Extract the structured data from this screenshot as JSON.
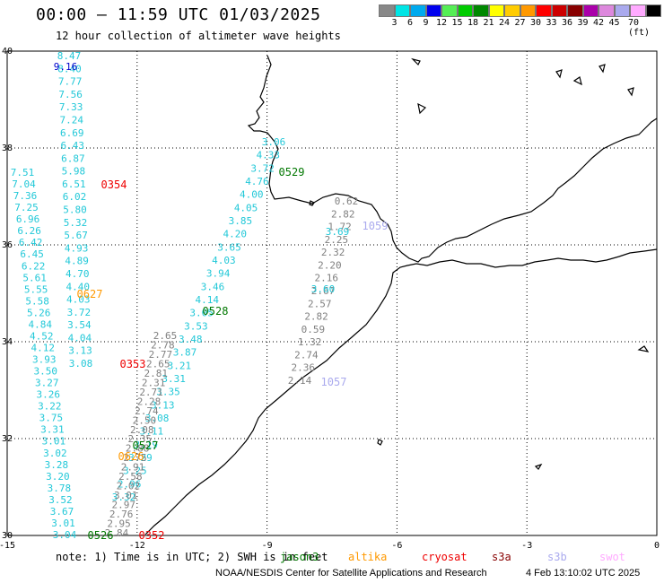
{
  "title": "00:00 – 11:59 UTC 01/03/2025",
  "subtitle": "12 hour collection of altimeter wave heights",
  "colorbar": {
    "colors": [
      "#888888",
      "#00e5e5",
      "#00aaee",
      "#0000ee",
      "#55ee55",
      "#00cc00",
      "#008800",
      "#ffff00",
      "#ffcc00",
      "#ff9900",
      "#ff0000",
      "#cc0000",
      "#880000",
      "#aa00aa",
      "#dd88dd",
      "#aaaaee",
      "#ffaaff",
      "#000000"
    ],
    "labels": [
      "3",
      "6",
      "9",
      "12",
      "15",
      "18",
      "21",
      "24",
      "27",
      "30",
      "33",
      "36",
      "39",
      "42",
      "45",
      "70 (ft)"
    ]
  },
  "axes": {
    "lat_labels": [
      "40",
      "38",
      "36",
      "34",
      "32",
      "30"
    ],
    "lon_labels": [
      "-15",
      "-12",
      "-9",
      "-6",
      "-3",
      "0"
    ]
  },
  "passes": [
    {
      "color": "#22c8d8",
      "values": [
        "8.47",
        "8.40",
        "7.77",
        "7.56",
        "7.33",
        "7.24",
        "6.69",
        "6.43",
        "6.87",
        "5.98",
        "6.51",
        "6.02",
        "5.80",
        "5.32",
        "5.67",
        "4.93",
        "4.89",
        "4.70",
        "4.40",
        "4.03",
        "3.72",
        "3.54",
        "4.04",
        "3.13",
        "3.08"
      ]
    },
    {
      "color": "#0000cc",
      "values": [
        "9.16"
      ]
    },
    {
      "color": "#22c8d8",
      "values": [
        "7.51",
        "7.04",
        "7.36",
        "7.25",
        "6.96",
        "6.26",
        "6.42",
        "6.45",
        "6.22",
        "5.61",
        "5.55",
        "5.58",
        "5.26",
        "4.84",
        "4.52",
        "4.12",
        "3.93",
        "3.50",
        "3.27",
        "3.26",
        "3.22",
        "3.75",
        "3.31",
        "3.01",
        "3.02",
        "3.28",
        "3.20",
        "3.78",
        "3.52",
        "3.67",
        "3.01",
        "3.04"
      ]
    },
    {
      "color": "#22c8d8",
      "values": [
        "3.06",
        "4.33",
        "3.72",
        "4.76",
        "4.00",
        "4.05",
        "3.85",
        "4.20",
        "3.65",
        "4.03",
        "3.94",
        "3.46",
        "4.14",
        "3.05",
        "3.53",
        "3.48",
        "3.87",
        "3.21",
        "3.31",
        "3.35",
        "3.13",
        "3.08",
        "3.11",
        "3.19",
        "3.29",
        "3.25",
        "2.96",
        "3.32"
      ]
    },
    {
      "color": "#808080",
      "values": [
        "0.62",
        "2.82",
        "1.72",
        "2.25",
        "2.32",
        "2.20",
        "2.16",
        "2.67",
        "2.57",
        "2.82",
        "0.59",
        "1.32",
        "2.74",
        "2.36",
        "2.14"
      ]
    },
    {
      "color": "#22c8d8",
      "values": [
        "3.69",
        "3.60"
      ]
    },
    {
      "color": "#808080",
      "values": [
        "2.65",
        "2.78",
        "2.77",
        "2.65",
        "2.81",
        "2.31",
        "2.71",
        "2.28",
        "2.74",
        "2.50",
        "2.08",
        "2.35",
        "2.88",
        "2.75",
        "2.91",
        "2.58",
        "2.02",
        "3.01",
        "2.97",
        "2.76",
        "2.95",
        "2.84"
      ]
    }
  ],
  "pass_ids": [
    {
      "label": "0354",
      "color": "#ee0000"
    },
    {
      "label": "0529",
      "color": "#007700"
    },
    {
      "label": "1059",
      "color": "#aaaaee"
    },
    {
      "label": "0627",
      "color": "#ff9900"
    },
    {
      "label": "0528",
      "color": "#007700"
    },
    {
      "label": "0353",
      "color": "#ee0000"
    },
    {
      "label": "1057",
      "color": "#aaaaee"
    },
    {
      "label": "0527",
      "color": "#007700"
    },
    {
      "label": "0626",
      "color": "#ff9900"
    },
    {
      "label": "0526",
      "color": "#007700"
    },
    {
      "label": "0352",
      "color": "#ee0000"
    }
  ],
  "note": "note:  1) Time is in UTC; 2) SWH is in feet",
  "legend": [
    {
      "label": "jason3",
      "color": "#007700"
    },
    {
      "label": "altika",
      "color": "#ff9900"
    },
    {
      "label": "cryosat",
      "color": "#ee0000"
    },
    {
      "label": "s3a",
      "color": "#880000"
    },
    {
      "label": "s3b",
      "color": "#aaaaee"
    },
    {
      "label": "swot",
      "color": "#ffaaff"
    }
  ],
  "footer": "NOAA/NESDIS Center for Satellite Applications and Research",
  "footer_date": "4 Feb 13:10:02 UTC 2025"
}
